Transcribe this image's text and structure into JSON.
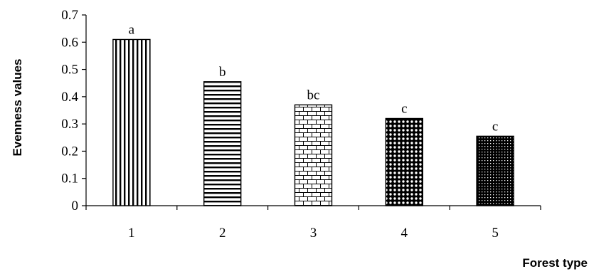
{
  "chart_data": {
    "type": "bar",
    "categories": [
      "1",
      "2",
      "3",
      "4",
      "5"
    ],
    "values": [
      0.61,
      0.455,
      0.37,
      0.32,
      0.255
    ],
    "data_labels": [
      "a",
      "b",
      "bc",
      "c",
      "c"
    ],
    "patterns": [
      "vertical-lines",
      "horizontal-lines",
      "brick",
      "circles",
      "dense-dots"
    ],
    "xlabel": "Forest type",
    "ylabel": "Evenness values",
    "ylim": [
      0,
      0.7
    ],
    "yticks": [
      "0",
      "0.1",
      "0.2",
      "0.3",
      "0.4",
      "0.5",
      "0.6",
      "0.7"
    ],
    "grid": false,
    "legend": "none"
  }
}
